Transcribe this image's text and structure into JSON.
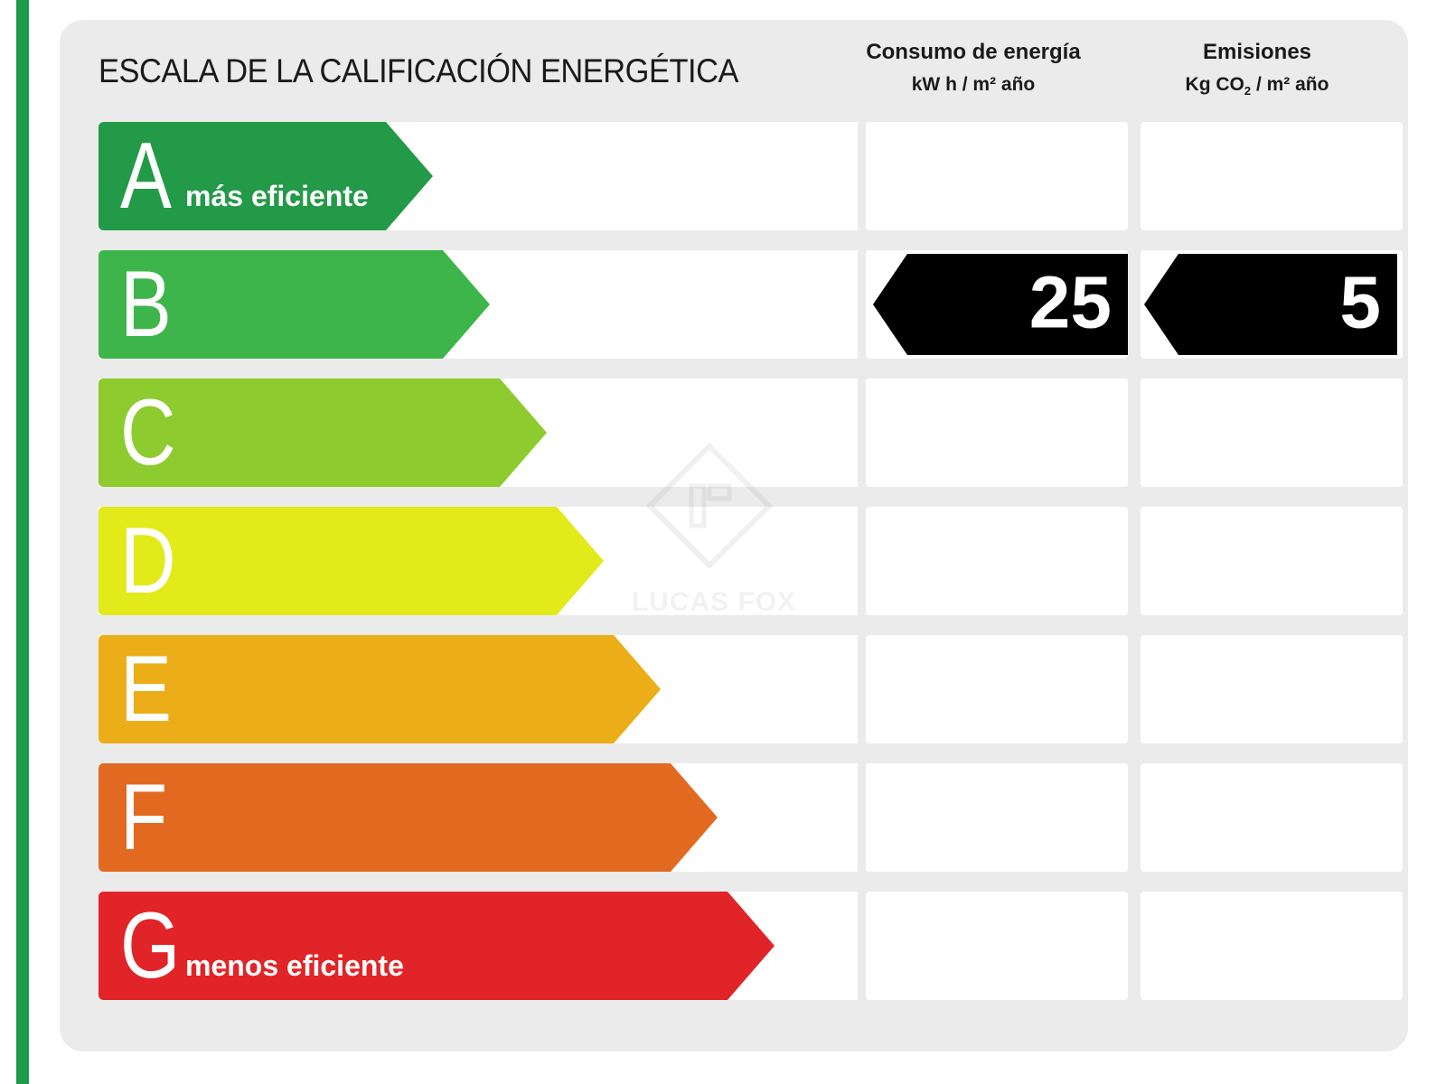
{
  "header": {
    "title": "ESCALA DE LA CALIFICACIÓN ENERGÉTICA",
    "energy": {
      "title": "Consumo de energía",
      "unit": "kW h / m² año"
    },
    "emissions": {
      "title": "Emisiones",
      "unit_prefix": "Kg CO",
      "unit_sub": "2",
      "unit_suffix": " / m² año"
    }
  },
  "watermark": {
    "text": "LUCAS FOX"
  },
  "chart_data": {
    "type": "table",
    "title": "ESCALA DE LA CALIFICACIÓN ENERGÉTICA",
    "columns": [
      "Consumo de energía kW h / m² año",
      "Emisiones Kg CO2 / m² año"
    ],
    "rating_scale": [
      {
        "letter": "A",
        "subtitle": "más eficiente",
        "color": "#239a48"
      },
      {
        "letter": "B",
        "subtitle": "",
        "color": "#3db54a"
      },
      {
        "letter": "C",
        "subtitle": "",
        "color": "#8dcb2e"
      },
      {
        "letter": "D",
        "subtitle": "",
        "color": "#e2ea19"
      },
      {
        "letter": "E",
        "subtitle": "",
        "color": "#ecae18"
      },
      {
        "letter": "F",
        "subtitle": "",
        "color": "#e26a20"
      },
      {
        "letter": "G",
        "subtitle": "menos eficiente",
        "color": "#e12428"
      }
    ],
    "energy": {
      "rating": "B",
      "value": 25
    },
    "emissions": {
      "rating": "B",
      "value": 5
    }
  }
}
